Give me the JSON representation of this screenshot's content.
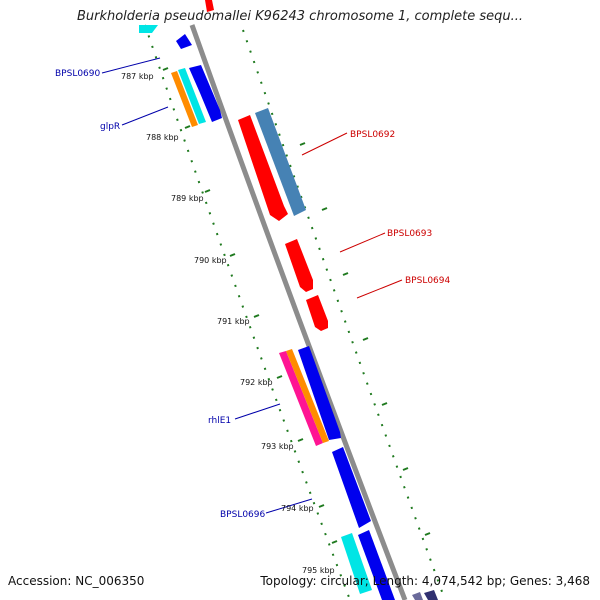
{
  "title": "Burkholderia pseudomallei K96243 chromosome 1, complete sequ...",
  "footer": {
    "accession": "Accession: NC_006350",
    "summary": "Topology: circular; Length: 4,074,542 bp; Genes: 3,468"
  },
  "colors": {
    "backbone": "#8c8c8c",
    "tick": "#1f7a1f",
    "forward_label": "#cc0000",
    "reverse_label": "#0000aa",
    "red": "#ff0000",
    "steelblue": "#4682b4",
    "blue": "#0000ee",
    "cyan": "#00e5e5",
    "orange": "#ff8c00",
    "magenta": "#ff1493"
  },
  "kbp_labels": [
    "787 kbp",
    "788 kbp",
    "789 kbp",
    "790 kbp",
    "791 kbp",
    "792 kbp",
    "793 kbp",
    "794 kbp",
    "795 kbp"
  ],
  "gene_labels": [
    {
      "text": "BPSL0690",
      "strand": "reverse"
    },
    {
      "text": "glpR",
      "strand": "reverse"
    },
    {
      "text": "BPSL0692",
      "strand": "forward"
    },
    {
      "text": "BPSL0693",
      "strand": "forward"
    },
    {
      "text": "BPSL0694",
      "strand": "forward"
    },
    {
      "text": "rhlE1",
      "strand": "reverse"
    },
    {
      "text": "BPSL0696",
      "strand": "reverse"
    }
  ]
}
